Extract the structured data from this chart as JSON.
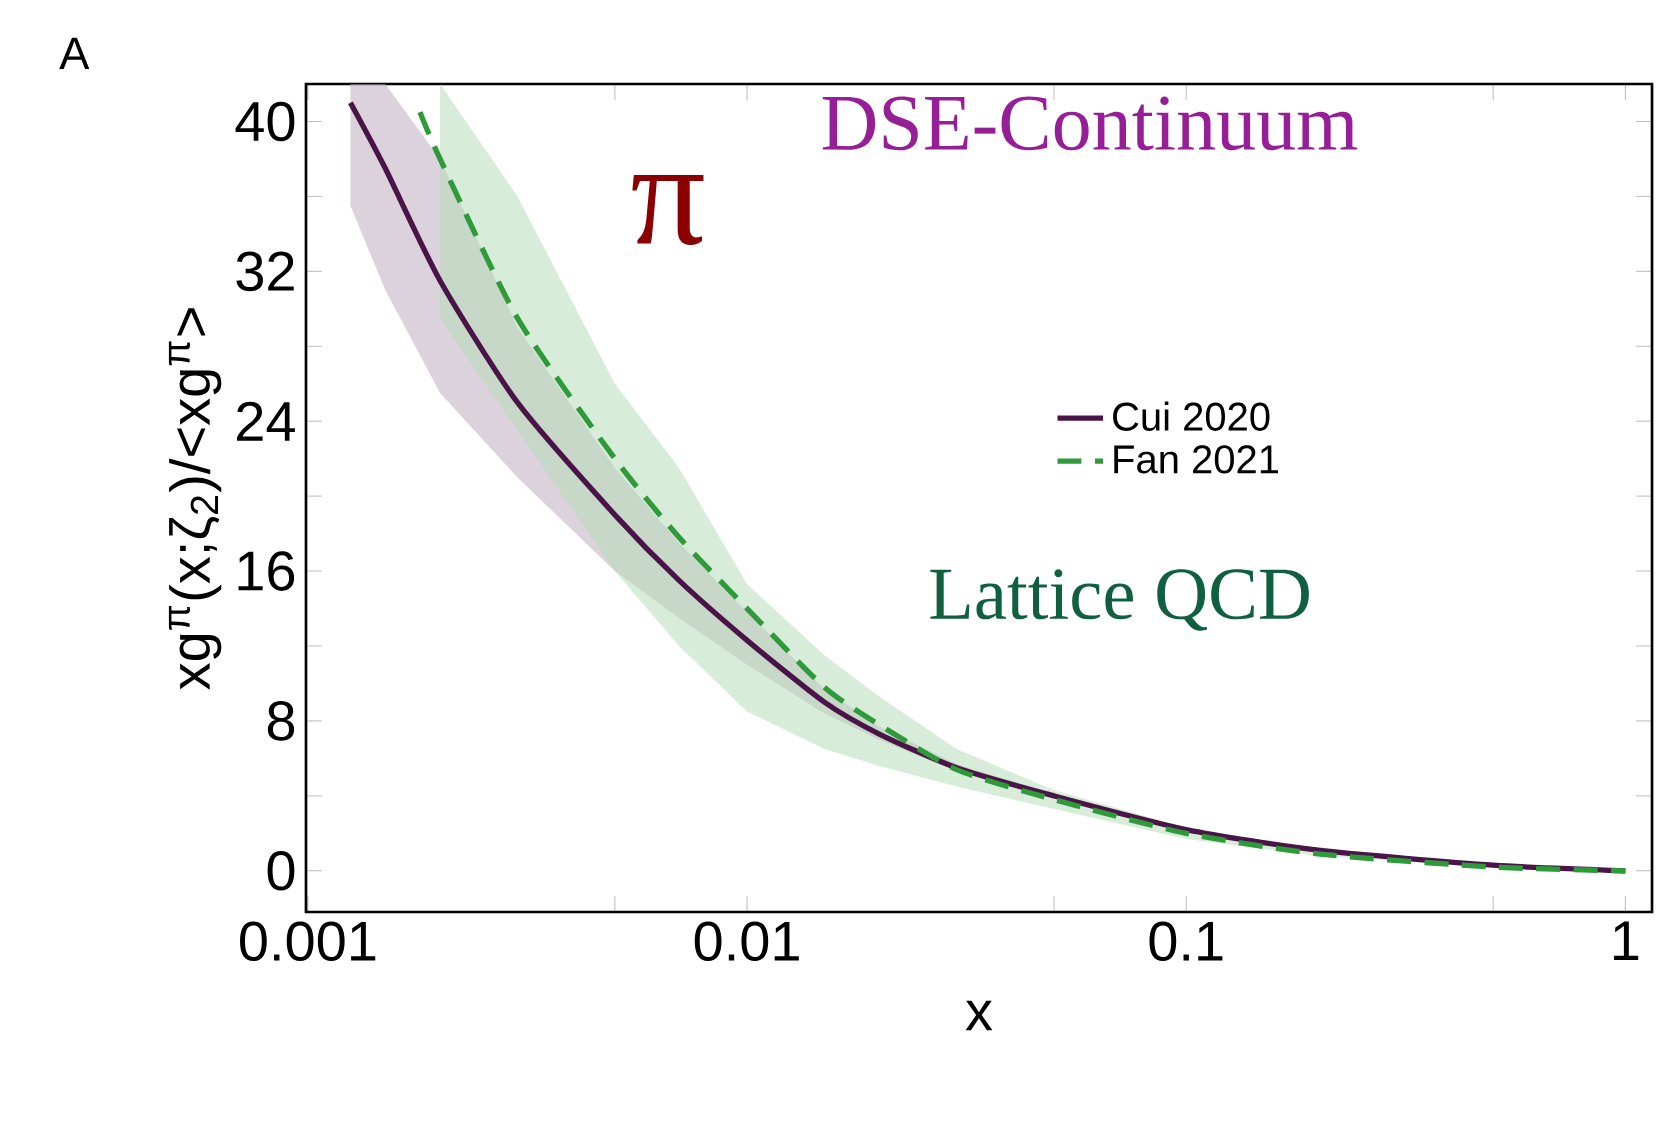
{
  "chart_data": {
    "type": "line",
    "xlabel": "x",
    "ylabel": "xg$^{π}$(x;ζ$_{2}$)/<xg$^{π}$>",
    "annotations": [
      "A",
      "π",
      "DSE-Continuum",
      "Lattice QCD"
    ],
    "log": "x",
    "legend": "right",
    "xlim": [
      0.00099,
      1.15
    ],
    "ylim": [
      -2.2,
      42
    ],
    "xticks": [
      0.001,
      {
        "value": 0.005,
        "label": null
      },
      0.01,
      {
        "value": 0.05,
        "label": null
      },
      0.1,
      {
        "value": 0.5,
        "label": null
      },
      1
    ],
    "yticks": [
      0,
      {
        "value": 4,
        "label": null
      },
      8,
      {
        "value": 12,
        "label": null
      },
      16,
      {
        "value": 20,
        "label": null
      },
      24,
      {
        "value": 28,
        "label": null
      },
      32,
      {
        "value": 36,
        "label": null
      },
      40
    ],
    "series": [
      {
        "name": "Cui 2020",
        "color": "#4a1448",
        "line_style": "solid",
        "x": [
          0.00125,
          0.0015,
          0.002,
          0.003,
          0.005,
          0.007,
          0.01,
          0.015,
          0.02,
          0.03,
          0.05,
          0.1,
          0.2,
          0.5,
          1
        ],
        "values": [
          41,
          37.5,
          31.5,
          25,
          19,
          15.5,
          12.3,
          9,
          7.3,
          5.5,
          4,
          2.2,
          1.1,
          0.3,
          0
        ],
        "lower": [
          35.5,
          31,
          25.5,
          21,
          16,
          13.5,
          11,
          8.4,
          7,
          5.3,
          3.9,
          2.1,
          1.0,
          0.3,
          0
        ],
        "upper": [
          42,
          42,
          38,
          29,
          21.5,
          17.5,
          13.8,
          9.7,
          7.7,
          5.7,
          4.1,
          2.3,
          1.1,
          0.3,
          0
        ]
      },
      {
        "name": "Fan 2021",
        "color": "#2e9a3a",
        "line_style": "dashed",
        "x": [
          0.0018,
          0.002,
          0.003,
          0.005,
          0.007,
          0.01,
          0.015,
          0.02,
          0.03,
          0.05,
          0.1,
          0.2,
          0.5,
          1
        ],
        "values": [
          40.5,
          38,
          29.5,
          22,
          17.8,
          14,
          9.8,
          7.8,
          5.4,
          3.8,
          2.0,
          0.9,
          0.2,
          0
        ],
        "lower": [
          null,
          29.5,
          23.5,
          16,
          12,
          8.5,
          6.5,
          5.6,
          4.5,
          3.3,
          1.7,
          0.8,
          0.2,
          0
        ],
        "upper": [
          null,
          42,
          36,
          26,
          21.5,
          15.3,
          11.5,
          9.3,
          6.5,
          4.3,
          2.3,
          1.1,
          0.3,
          0
        ]
      }
    ]
  }
}
